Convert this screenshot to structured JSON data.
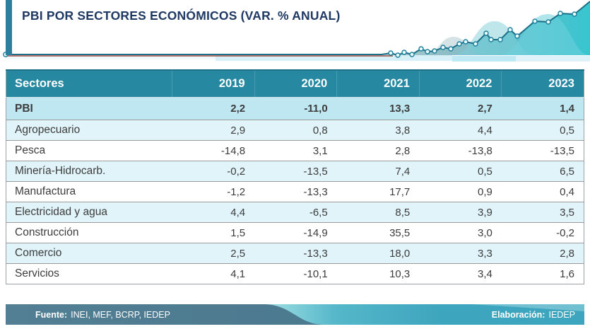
{
  "header": {
    "title": "PBI POR SECTORES ECONÓMICOS (VAR. % ANUAL)"
  },
  "table": {
    "columns": [
      "Sectores",
      "2019",
      "2020",
      "2021",
      "2022",
      "2023"
    ],
    "rows": [
      {
        "sector": "PBI",
        "values": [
          "2,2",
          "-11,0",
          "13,3",
          "2,7",
          "1,4"
        ],
        "highlight": true
      },
      {
        "sector": "Agropecuario",
        "values": [
          "2,9",
          "0,8",
          "3,8",
          "4,4",
          "0,5"
        ],
        "highlight": false
      },
      {
        "sector": "Pesca",
        "values": [
          "-14,8",
          "3,1",
          "2,8",
          "-13,8",
          "-13,5"
        ],
        "highlight": false
      },
      {
        "sector": "Minería-Hidrocarb.",
        "values": [
          "-0,2",
          "-13,5",
          "7,4",
          "0,5",
          "6,5"
        ],
        "highlight": false
      },
      {
        "sector": "Manufactura",
        "values": [
          "-1,2",
          "-13,3",
          "17,7",
          "0,9",
          "0,4"
        ],
        "highlight": false
      },
      {
        "sector": "Electricidad y agua",
        "values": [
          "4,4",
          "-6,5",
          "8,5",
          "3,9",
          "3,5"
        ],
        "highlight": false
      },
      {
        "sector": "Construcción",
        "values": [
          "1,5",
          "-14,9",
          "35,5",
          "3,0",
          "-0,2"
        ],
        "highlight": false
      },
      {
        "sector": "Comercio",
        "values": [
          "2,5",
          "-13,3",
          "18,0",
          "3,3",
          "2,8"
        ],
        "highlight": false
      },
      {
        "sector": "Servicios",
        "values": [
          "4,1",
          "-10,1",
          "10,3",
          "3,4",
          "1,6"
        ],
        "highlight": false
      }
    ]
  },
  "footer": {
    "source_label": "Fuente:",
    "source_text": "INEI, MEF, BCRP, IEDEP",
    "elaboration_label": "Elaboración:",
    "elaboration_text": "IEDEP"
  },
  "colors": {
    "title_navy": "#1f3864",
    "header_teal": "#2689a1",
    "pbi_row_blue": "#bfe7f1",
    "alt_row_blue": "#e1f4fa",
    "footer_slate": "#4d7a90",
    "footer_teal": "#3ea5be",
    "sparkline_teal": "#2cc0cc",
    "sparkline_red": "#a34c44"
  },
  "chart_data": {
    "type": "table",
    "title": "PBI POR SECTORES ECONÓMICOS (VAR. % ANUAL)",
    "unit": "variación % anual",
    "columns": [
      "2019",
      "2020",
      "2021",
      "2022",
      "2023"
    ],
    "rows": [
      {
        "sector": "PBI",
        "values": [
          2.2,
          -11.0,
          13.3,
          2.7,
          1.4
        ]
      },
      {
        "sector": "Agropecuario",
        "values": [
          2.9,
          0.8,
          3.8,
          4.4,
          0.5
        ]
      },
      {
        "sector": "Pesca",
        "values": [
          -14.8,
          3.1,
          2.8,
          -13.8,
          -13.5
        ]
      },
      {
        "sector": "Minería-Hidrocarb.",
        "values": [
          -0.2,
          -13.5,
          7.4,
          0.5,
          6.5
        ]
      },
      {
        "sector": "Manufactura",
        "values": [
          -1.2,
          -13.3,
          17.7,
          0.9,
          0.4
        ]
      },
      {
        "sector": "Electricidad y agua",
        "values": [
          4.4,
          -6.5,
          8.5,
          3.9,
          3.5
        ]
      },
      {
        "sector": "Construcción",
        "values": [
          1.5,
          -14.9,
          35.5,
          3.0,
          -0.2
        ]
      },
      {
        "sector": "Comercio",
        "values": [
          2.5,
          -13.3,
          18.0,
          3.3,
          2.8
        ]
      },
      {
        "sector": "Servicios",
        "values": [
          4.1,
          -10.1,
          10.3,
          3.4,
          1.6
        ]
      }
    ],
    "source": "INEI, MEF, BCRP, IEDEP",
    "elaboration": "IEDEP"
  }
}
